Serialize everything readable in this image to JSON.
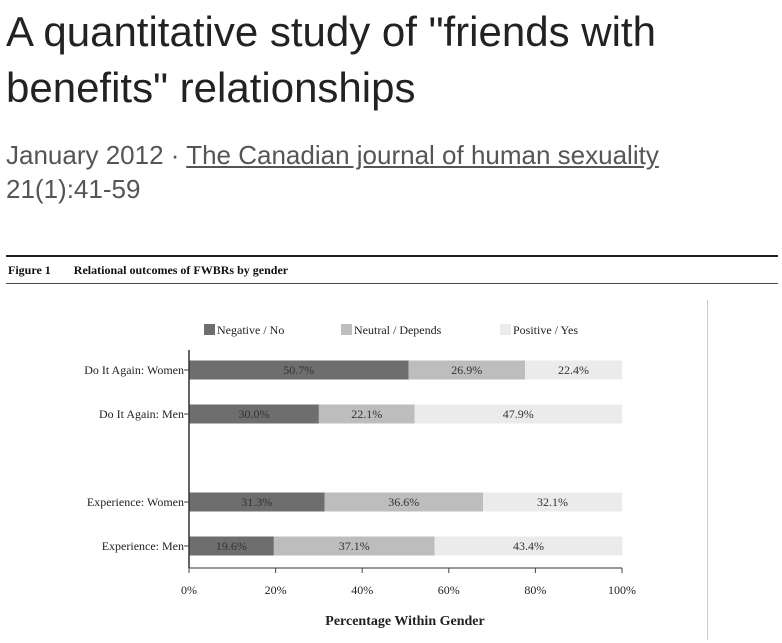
{
  "title": "A quantitative study of \"friends with benefits\" relationships",
  "meta": {
    "date": "January 2012",
    "separator": " · ",
    "journal": "The Canadian journal of human sexuality",
    "volume": "21(1):41-59"
  },
  "figure": {
    "number": "Figure 1",
    "caption": "Relational outcomes of FWBRs by gender"
  },
  "chart_data": {
    "type": "bar",
    "orientation": "horizontal",
    "stacked": true,
    "title": "",
    "xlabel": "Percentage Within Gender",
    "ylabel": "",
    "xlim": [
      0,
      100
    ],
    "xticks": [
      "0%",
      "20%",
      "40%",
      "60%",
      "80%",
      "100%"
    ],
    "legend_position": "top",
    "categories": [
      "Do It Again: Women",
      "Do It Again: Men",
      "Experience: Women",
      "Experience: Men"
    ],
    "series": [
      {
        "name": "Negative / No",
        "color": "#6e6e6e",
        "values": [
          50.7,
          30.0,
          31.3,
          19.6
        ],
        "labels": [
          "50.7%",
          "30.0%",
          "31.3%",
          "19.6%"
        ]
      },
      {
        "name": "Neutral / Depends",
        "color": "#bdbdbd",
        "values": [
          26.9,
          22.1,
          36.6,
          37.1
        ],
        "labels": [
          "26.9%",
          "22.1%",
          "36.6%",
          "37.1%"
        ]
      },
      {
        "name": "Positive / Yes",
        "color": "#ebebeb",
        "values": [
          22.4,
          47.9,
          32.1,
          43.4
        ],
        "labels": [
          "22.4%",
          "47.9%",
          "32.1%",
          "43.4%"
        ]
      }
    ]
  }
}
